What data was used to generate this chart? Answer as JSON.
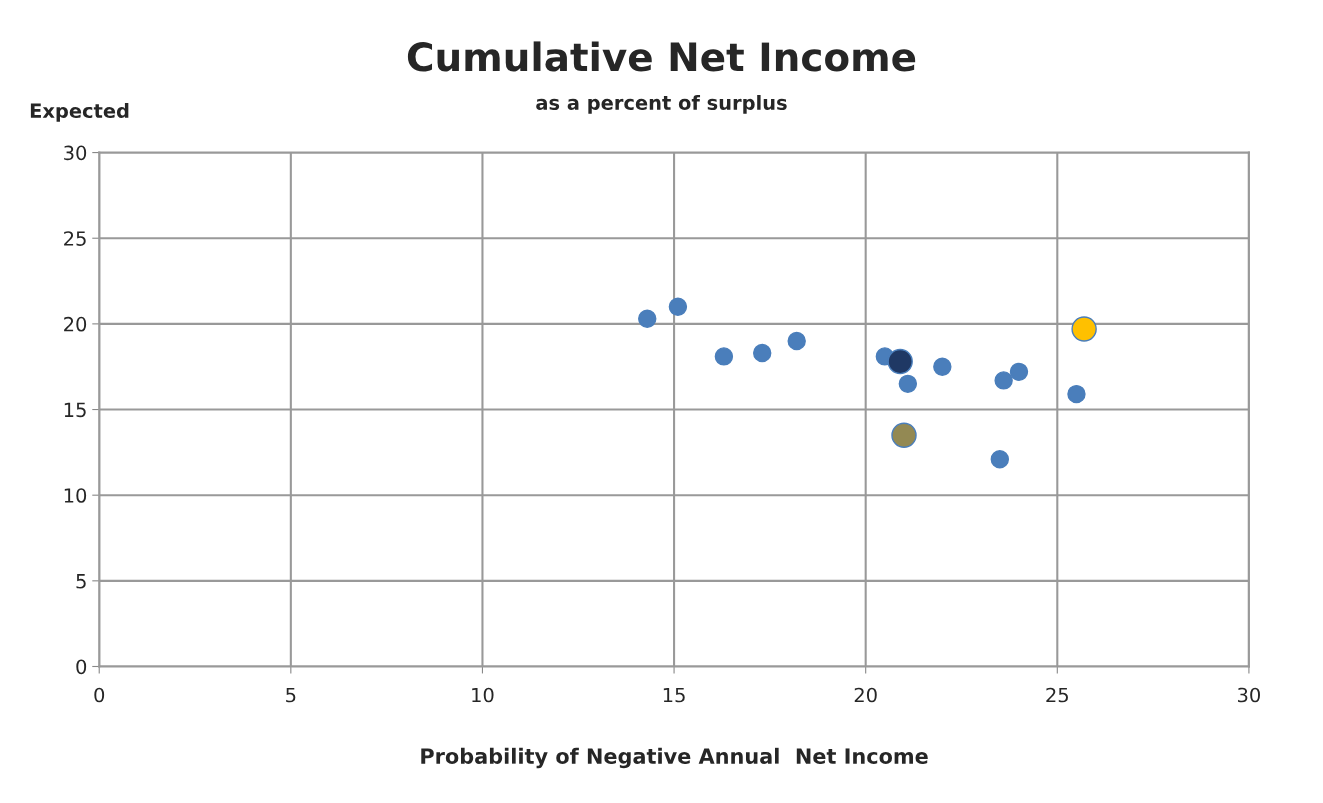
{
  "chart_data": {
    "type": "scatter",
    "title": "Cumulative Net Income",
    "subtitle": "as a percent of surplus",
    "xlabel": "Probability of Negative Annual  Net Income",
    "ylabel": "Expected",
    "series": [
      {
        "color": "#4a7ebb",
        "x": [
          14.3,
          15.1,
          16.3,
          17.3,
          18.2,
          20.5,
          21.1,
          22.0,
          23.6,
          24.0,
          25.5,
          23.5
        ],
        "values": [
          20.3,
          21.0,
          18.1,
          18.3,
          19.0,
          18.1,
          16.5,
          17.5,
          16.7,
          17.2,
          15.9,
          12.1
        ]
      },
      {
        "color": "#1f3864",
        "x": [
          20.9
        ],
        "values": [
          17.8
        ]
      },
      {
        "color": "#ffc000",
        "x": [
          25.7
        ],
        "values": [
          19.7
        ]
      },
      {
        "color": "#938953",
        "x": [
          21.0
        ],
        "values": [
          13.5
        ]
      }
    ],
    "xlim": [
      0,
      30
    ],
    "xticks": [
      0,
      5,
      10,
      15,
      20,
      25,
      30
    ],
    "ylim": [
      0,
      30
    ],
    "yticks": [
      0,
      5,
      10,
      15,
      20,
      25,
      30
    ],
    "grid": true,
    "marker": "circle"
  }
}
